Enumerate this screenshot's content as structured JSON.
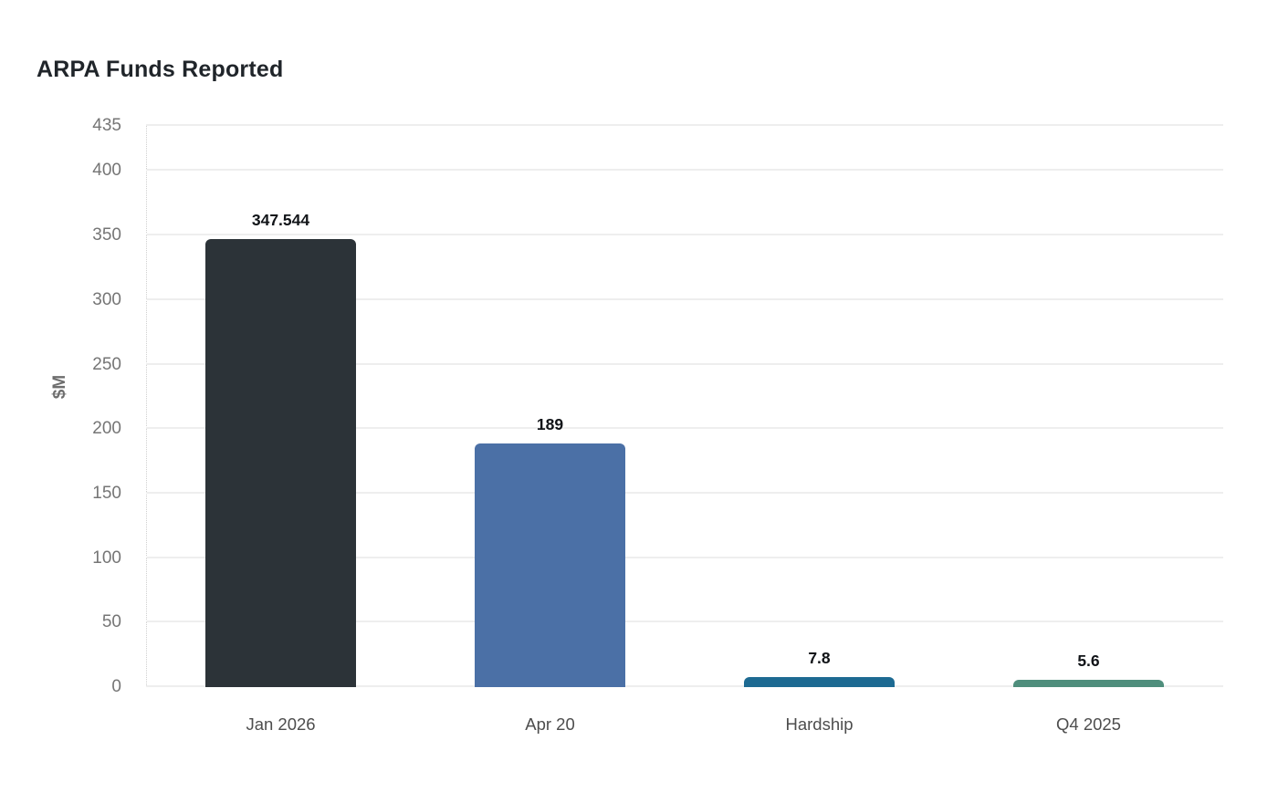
{
  "title": "ARPA Funds Reported",
  "chart_data": {
    "type": "bar",
    "title": "ARPA Funds Reported",
    "xlabel": "",
    "ylabel": "$M",
    "categories": [
      "Jan 2026",
      "Apr 20",
      "Hardship",
      "Q4 2025"
    ],
    "values": [
      347.544,
      189,
      7.8,
      5.6
    ],
    "value_labels": [
      "347.544",
      "189",
      "7.8",
      "5.6"
    ],
    "bar_colors": [
      "#2c3338",
      "#4b70a6",
      "#1d6a92",
      "#4f8e7c"
    ],
    "ylim": [
      0,
      435
    ],
    "yticks": [
      0,
      50,
      100,
      150,
      200,
      250,
      300,
      350,
      400,
      435
    ],
    "grid": true,
    "legend": false,
    "background_color": "#ffffff",
    "gridline_color": "#eeeeee",
    "tick_label_color": "#757575",
    "category_label_color": "#4d4d4d",
    "title_color": "#20252a",
    "value_label_color": "#111418"
  }
}
